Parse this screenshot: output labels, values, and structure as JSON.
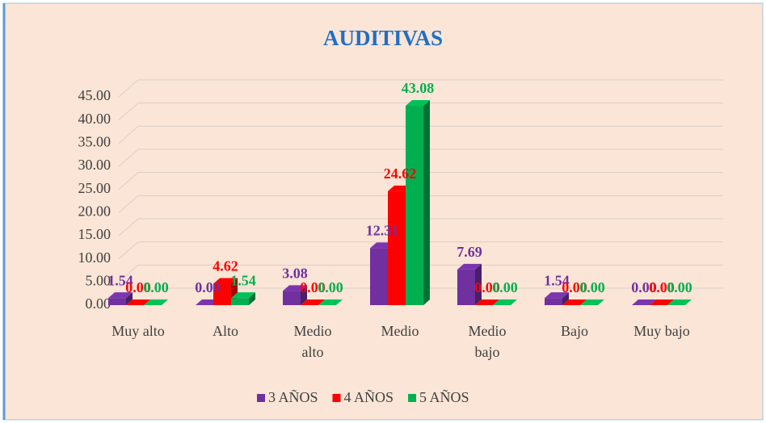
{
  "chart_data": {
    "type": "bar3d",
    "title": "AUDITIVAS",
    "categories": [
      "Muy alto",
      "Alto",
      "Medio alto",
      "Medio",
      "Medio bajo",
      "Bajo",
      "Muy bajo"
    ],
    "series": [
      {
        "name": "3 AÑOS",
        "color": "#7030a0",
        "values": [
          1.54,
          0,
          3.08,
          12.31,
          7.69,
          1.54,
          0
        ],
        "value_labels": [
          "1.54",
          "0.00",
          "3.08",
          "12.31",
          "7.69",
          "1.54",
          "0.00"
        ]
      },
      {
        "name": "4 AÑOS",
        "color": "#ff0000",
        "values": [
          0,
          4.62,
          0,
          24.62,
          0,
          0,
          0
        ],
        "value_labels": [
          "0.00",
          "4.62",
          "0.00",
          "24.62",
          "0.00",
          "0.00",
          "0.00"
        ]
      },
      {
        "name": "5 AÑOS",
        "color": "#00b050",
        "values": [
          0,
          1.54,
          0,
          43.08,
          0,
          0,
          0
        ],
        "value_labels": [
          "0.00",
          "1.54",
          "0.00",
          "43.08",
          "0.00",
          "0.00",
          "0.00"
        ]
      }
    ],
    "ylim": [
      0,
      45
    ],
    "yticks": [
      {
        "value": 0,
        "label": "0.00"
      },
      {
        "value": 5,
        "label": "5.00"
      },
      {
        "value": 10,
        "label": "10.00"
      },
      {
        "value": 15,
        "label": "15.00"
      },
      {
        "value": 20,
        "label": "20.00"
      },
      {
        "value": 25,
        "label": "25.00"
      },
      {
        "value": 30,
        "label": "30.00"
      },
      {
        "value": 35,
        "label": "35.00"
      },
      {
        "value": 40,
        "label": "40.00"
      },
      {
        "value": 45,
        "label": "45.00"
      }
    ],
    "grid": true,
    "legend": "bottom"
  }
}
